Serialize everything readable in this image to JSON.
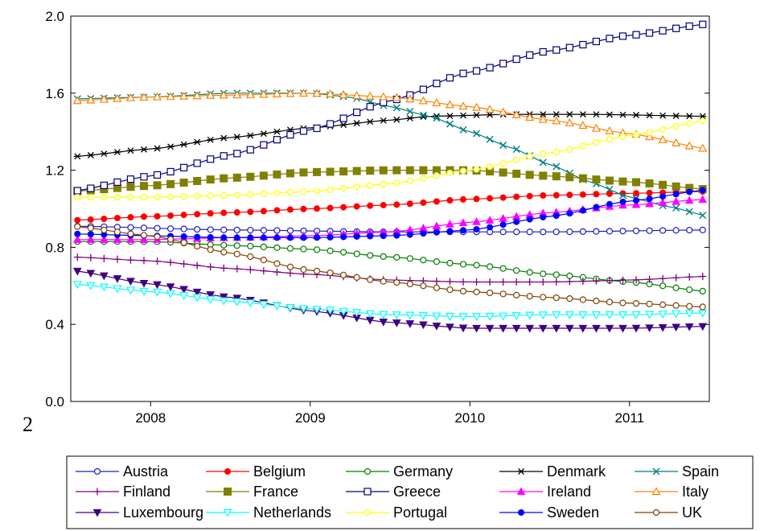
{
  "page_marker": "2",
  "chart_data": {
    "type": "line",
    "title": "",
    "xlabel": "",
    "ylabel": "",
    "ylim": [
      0.0,
      2.0
    ],
    "y_ticks": [
      "0.0",
      "0.4",
      "0.8",
      "1.2",
      "1.6",
      "2.0"
    ],
    "x_start": 2007.5,
    "x_end": 2011.5,
    "x_ticks": [
      "2008",
      "2009",
      "2010",
      "2011"
    ],
    "grid": false,
    "legend_position": "bottom",
    "series": [
      {
        "name": "Austria",
        "color": "#1f1fbf",
        "marker": "circle-open",
        "knots": [
          [
            2007.5,
            0.91
          ],
          [
            2008.5,
            0.89
          ],
          [
            2009.5,
            0.88
          ],
          [
            2010.5,
            0.88
          ],
          [
            2011.5,
            0.89
          ]
        ]
      },
      {
        "name": "Belgium",
        "color": "#ff0000",
        "marker": "circle-filled",
        "knots": [
          [
            2007.5,
            0.94
          ],
          [
            2008.0,
            0.96
          ],
          [
            2008.5,
            0.98
          ],
          [
            2009.0,
            1.0
          ],
          [
            2009.5,
            1.02
          ],
          [
            2010.0,
            1.05
          ],
          [
            2010.5,
            1.07
          ],
          [
            2011.0,
            1.08
          ],
          [
            2011.5,
            1.09
          ]
        ]
      },
      {
        "name": "Germany",
        "color": "#008000",
        "marker": "circle-open",
        "knots": [
          [
            2007.5,
            0.83
          ],
          [
            2008.0,
            0.83
          ],
          [
            2008.5,
            0.81
          ],
          [
            2009.0,
            0.79
          ],
          [
            2009.5,
            0.75
          ],
          [
            2010.0,
            0.71
          ],
          [
            2010.5,
            0.66
          ],
          [
            2011.0,
            0.62
          ],
          [
            2011.5,
            0.57
          ]
        ]
      },
      {
        "name": "Denmark",
        "color": "#000000",
        "marker": "asterisk",
        "knots": [
          [
            2007.5,
            1.27
          ],
          [
            2008.0,
            1.31
          ],
          [
            2008.5,
            1.37
          ],
          [
            2009.0,
            1.42
          ],
          [
            2009.5,
            1.46
          ],
          [
            2009.75,
            1.48
          ],
          [
            2010.25,
            1.49
          ],
          [
            2010.75,
            1.49
          ],
          [
            2011.5,
            1.48
          ]
        ]
      },
      {
        "name": "Spain",
        "color": "#008080",
        "marker": "x-cross",
        "knots": [
          [
            2007.5,
            1.57
          ],
          [
            2008.0,
            1.58
          ],
          [
            2008.5,
            1.6
          ],
          [
            2009.0,
            1.6
          ],
          [
            2009.25,
            1.58
          ],
          [
            2009.5,
            1.53
          ],
          [
            2009.75,
            1.48
          ],
          [
            2010.0,
            1.4
          ],
          [
            2010.25,
            1.32
          ],
          [
            2010.5,
            1.23
          ],
          [
            2010.75,
            1.14
          ],
          [
            2011.0,
            1.06
          ],
          [
            2011.25,
            1.01
          ],
          [
            2011.5,
            0.96
          ]
        ]
      },
      {
        "name": "Finland",
        "color": "#800080",
        "marker": "plus",
        "knots": [
          [
            2007.5,
            0.75
          ],
          [
            2008.0,
            0.73
          ],
          [
            2008.5,
            0.69
          ],
          [
            2009.0,
            0.66
          ],
          [
            2009.5,
            0.63
          ],
          [
            2010.0,
            0.62
          ],
          [
            2010.5,
            0.62
          ],
          [
            2011.0,
            0.63
          ],
          [
            2011.5,
            0.65
          ]
        ]
      },
      {
        "name": "France",
        "color": "#808000",
        "marker": "square-filled",
        "knots": [
          [
            2007.5,
            1.09
          ],
          [
            2008.0,
            1.12
          ],
          [
            2008.5,
            1.16
          ],
          [
            2009.0,
            1.19
          ],
          [
            2009.5,
            1.2
          ],
          [
            2010.0,
            1.2
          ],
          [
            2010.5,
            1.17
          ],
          [
            2011.0,
            1.14
          ],
          [
            2011.5,
            1.1
          ]
        ]
      },
      {
        "name": "Greece",
        "color": "#000080",
        "marker": "square-open",
        "knots": [
          [
            2007.5,
            1.09
          ],
          [
            2008.0,
            1.17
          ],
          [
            2008.5,
            1.28
          ],
          [
            2009.0,
            1.41
          ],
          [
            2009.5,
            1.56
          ],
          [
            2010.0,
            1.71
          ],
          [
            2010.5,
            1.82
          ],
          [
            2011.0,
            1.9
          ],
          [
            2011.5,
            1.96
          ]
        ]
      },
      {
        "name": "Ireland",
        "color": "#ff00ff",
        "marker": "triangle-filled",
        "knots": [
          [
            2007.5,
            0.84
          ],
          [
            2008.0,
            0.84
          ],
          [
            2008.5,
            0.85
          ],
          [
            2009.0,
            0.86
          ],
          [
            2009.5,
            0.88
          ],
          [
            2010.0,
            0.93
          ],
          [
            2010.5,
            0.98
          ],
          [
            2011.0,
            1.02
          ],
          [
            2011.5,
            1.05
          ]
        ]
      },
      {
        "name": "Italy",
        "color": "#ff8000",
        "marker": "triangle-open",
        "knots": [
          [
            2007.5,
            1.56
          ],
          [
            2008.0,
            1.58
          ],
          [
            2008.5,
            1.59
          ],
          [
            2009.0,
            1.6
          ],
          [
            2009.5,
            1.58
          ],
          [
            2010.0,
            1.53
          ],
          [
            2010.5,
            1.46
          ],
          [
            2011.0,
            1.39
          ],
          [
            2011.5,
            1.31
          ]
        ]
      },
      {
        "name": "Luxembourg",
        "color": "#400080",
        "marker": "triangle-down-filled",
        "knots": [
          [
            2007.5,
            0.68
          ],
          [
            2008.0,
            0.61
          ],
          [
            2008.5,
            0.54
          ],
          [
            2009.0,
            0.47
          ],
          [
            2009.5,
            0.41
          ],
          [
            2010.0,
            0.38
          ],
          [
            2010.5,
            0.38
          ],
          [
            2011.0,
            0.38
          ],
          [
            2011.5,
            0.39
          ]
        ]
      },
      {
        "name": "Netherlands",
        "color": "#00ffff",
        "marker": "triangle-down-open",
        "knots": [
          [
            2007.5,
            0.61
          ],
          [
            2008.0,
            0.57
          ],
          [
            2008.5,
            0.52
          ],
          [
            2009.0,
            0.48
          ],
          [
            2009.5,
            0.45
          ],
          [
            2010.0,
            0.44
          ],
          [
            2010.5,
            0.45
          ],
          [
            2011.0,
            0.45
          ],
          [
            2011.5,
            0.46
          ]
        ]
      },
      {
        "name": "Portugal",
        "color": "#ffff00",
        "marker": "circle-open",
        "knots": [
          [
            2007.5,
            1.06
          ],
          [
            2008.0,
            1.06
          ],
          [
            2008.5,
            1.07
          ],
          [
            2009.0,
            1.09
          ],
          [
            2009.5,
            1.13
          ],
          [
            2010.0,
            1.2
          ],
          [
            2010.5,
            1.29
          ],
          [
            2011.0,
            1.38
          ],
          [
            2011.5,
            1.46
          ]
        ]
      },
      {
        "name": "Sweden",
        "color": "#0000ff",
        "marker": "circle-filled",
        "knots": [
          [
            2007.5,
            0.87
          ],
          [
            2008.0,
            0.86
          ],
          [
            2008.5,
            0.85
          ],
          [
            2009.0,
            0.85
          ],
          [
            2009.5,
            0.86
          ],
          [
            2010.0,
            0.89
          ],
          [
            2010.5,
            0.96
          ],
          [
            2011.0,
            1.04
          ],
          [
            2011.5,
            1.1
          ]
        ]
      },
      {
        "name": "UK",
        "color": "#804000",
        "marker": "circle-open",
        "knots": [
          [
            2007.5,
            0.91
          ],
          [
            2008.0,
            0.86
          ],
          [
            2008.5,
            0.77
          ],
          [
            2009.0,
            0.68
          ],
          [
            2009.5,
            0.62
          ],
          [
            2010.0,
            0.57
          ],
          [
            2010.5,
            0.54
          ],
          [
            2011.0,
            0.51
          ],
          [
            2011.5,
            0.49
          ]
        ]
      }
    ]
  }
}
